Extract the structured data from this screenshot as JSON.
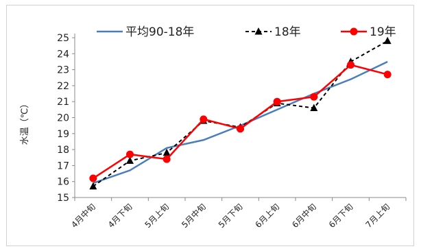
{
  "chart_data": {
    "type": "line",
    "title": "",
    "xlabel": "",
    "ylabel": "水温（℃）",
    "ylim": [
      15,
      25
    ],
    "y_ticks": [
      15,
      16,
      17,
      18,
      19,
      20,
      21,
      22,
      23,
      24,
      25
    ],
    "grid": false,
    "legend_position": "top",
    "categories": [
      "4月中旬",
      "4月下旬",
      "5月上旬",
      "5月中旬",
      "5月下旬",
      "6月上旬",
      "6月中旬",
      "6月下旬",
      "7月上旬"
    ],
    "series": [
      {
        "name": "平均90-18年",
        "color": "#4a7ebb",
        "style": "solid",
        "marker": "none",
        "values": [
          15.9,
          16.7,
          18.1,
          18.6,
          19.5,
          20.5,
          21.5,
          22.4,
          23.5
        ]
      },
      {
        "name": "18年",
        "color": "#000000",
        "style": "dashed",
        "marker": "triangle",
        "values": [
          15.7,
          17.3,
          17.8,
          19.8,
          19.4,
          20.9,
          20.6,
          23.5,
          24.8
        ]
      },
      {
        "name": "19年",
        "color": "#ff0000",
        "style": "solid",
        "marker": "circle",
        "values": [
          16.2,
          17.7,
          17.4,
          19.9,
          19.3,
          21.0,
          21.3,
          23.3,
          22.7
        ]
      }
    ]
  }
}
